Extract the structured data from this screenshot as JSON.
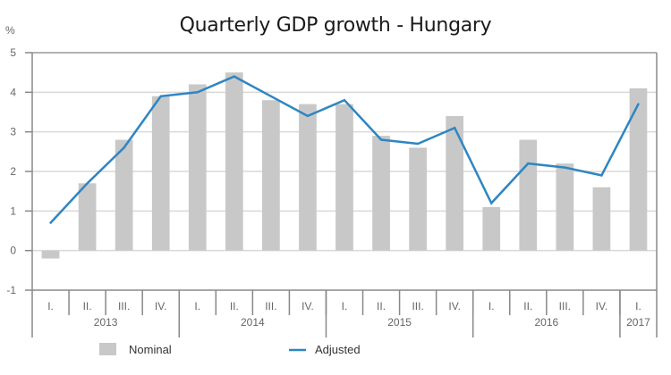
{
  "chart_data": {
    "type": "bar",
    "title": "Quarterly GDP growth - Hungary",
    "ylabel": "%",
    "xlabel": "",
    "ylim": [
      -1,
      5
    ],
    "yticks": [
      5,
      4,
      3,
      2,
      1,
      0,
      -1
    ],
    "grid": true,
    "legend_position": "bottom",
    "categories": [
      "I.",
      "II.",
      "III.",
      "IV.",
      "I.",
      "II.",
      "III.",
      "IV.",
      "I.",
      "II.",
      "III.",
      "IV.",
      "I.",
      "II.",
      "III.",
      "IV.",
      "I."
    ],
    "groups": [
      {
        "label": "2013",
        "count": 4
      },
      {
        "label": "2014",
        "count": 4
      },
      {
        "label": "2015",
        "count": 4
      },
      {
        "label": "2016",
        "count": 4
      },
      {
        "label": "2017",
        "count": 1
      }
    ],
    "series": [
      {
        "name": "Nominal",
        "type": "bar",
        "color": "#c8c8c9",
        "values": [
          -0.2,
          1.7,
          2.8,
          3.9,
          4.2,
          4.5,
          3.8,
          3.7,
          3.7,
          2.9,
          2.6,
          3.4,
          1.1,
          2.8,
          2.2,
          1.6,
          4.1
        ]
      },
      {
        "name": "Adjusted",
        "type": "line",
        "color": "#2e86c1",
        "values": [
          0.7,
          1.7,
          2.6,
          3.9,
          4.0,
          4.4,
          3.9,
          3.4,
          3.8,
          2.8,
          2.7,
          3.1,
          1.2,
          2.2,
          2.1,
          1.9,
          3.7
        ]
      }
    ]
  }
}
